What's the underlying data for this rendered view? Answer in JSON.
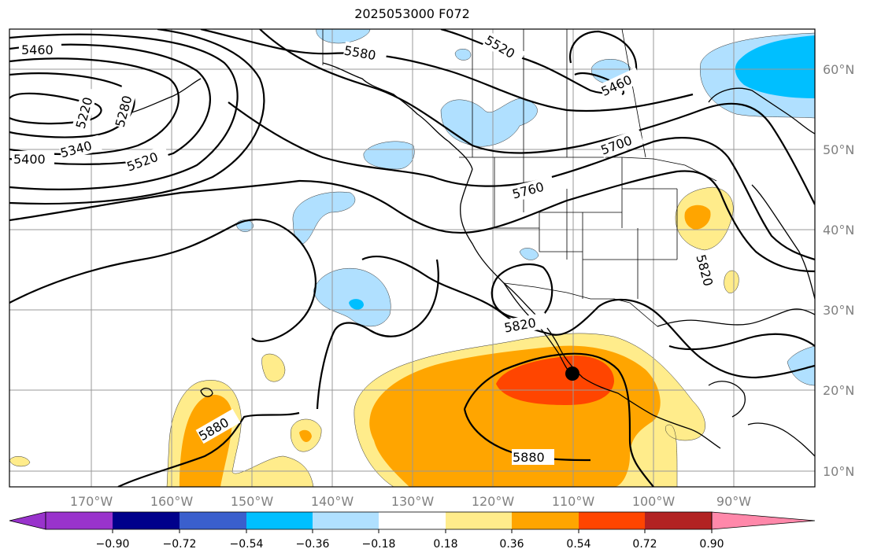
{
  "title": "2025053000 F072",
  "latitude_labels": [
    "60°N",
    "50°N",
    "40°N",
    "30°N",
    "20°N",
    "10°N"
  ],
  "longitude_labels": [
    "170°W",
    "160°W",
    "150°W",
    "140°W",
    "130°W",
    "120°W",
    "110°W",
    "100°W",
    "90°W"
  ],
  "colorbar": {
    "tick_labels": [
      "−0.90",
      "−0.72",
      "−0.54",
      "−0.36",
      "−0.18",
      "0.18",
      "0.36",
      "0.54",
      "0.72",
      "0.90"
    ],
    "colors": [
      "#9933cc",
      "#00008b",
      "#3a5fcd",
      "#00bfff",
      "#b0e0ff",
      "#ffffff",
      "#ffec8b",
      "#ffa500",
      "#ff4500",
      "#b22222",
      "#ff88aa"
    ]
  },
  "contour_labels": {
    "c5460a": "5460",
    "c5460b": "5460",
    "c5580": "5580",
    "c5520a": "5520",
    "c5520b": "5520",
    "c5220": "5220",
    "c5280": "5280",
    "c5340": "5340",
    "c5400": "5400",
    "c5700": "5700",
    "c5760": "5760",
    "c5820a": "5820",
    "c5820b": "5820",
    "c5880a": "5880",
    "c5880b": "5880"
  },
  "colors": {
    "light_blue": "#b0e0ff",
    "blue": "#00bfff",
    "yellow": "#ffec8b",
    "orange": "#ffa500",
    "red_orange": "#ff4500"
  }
}
